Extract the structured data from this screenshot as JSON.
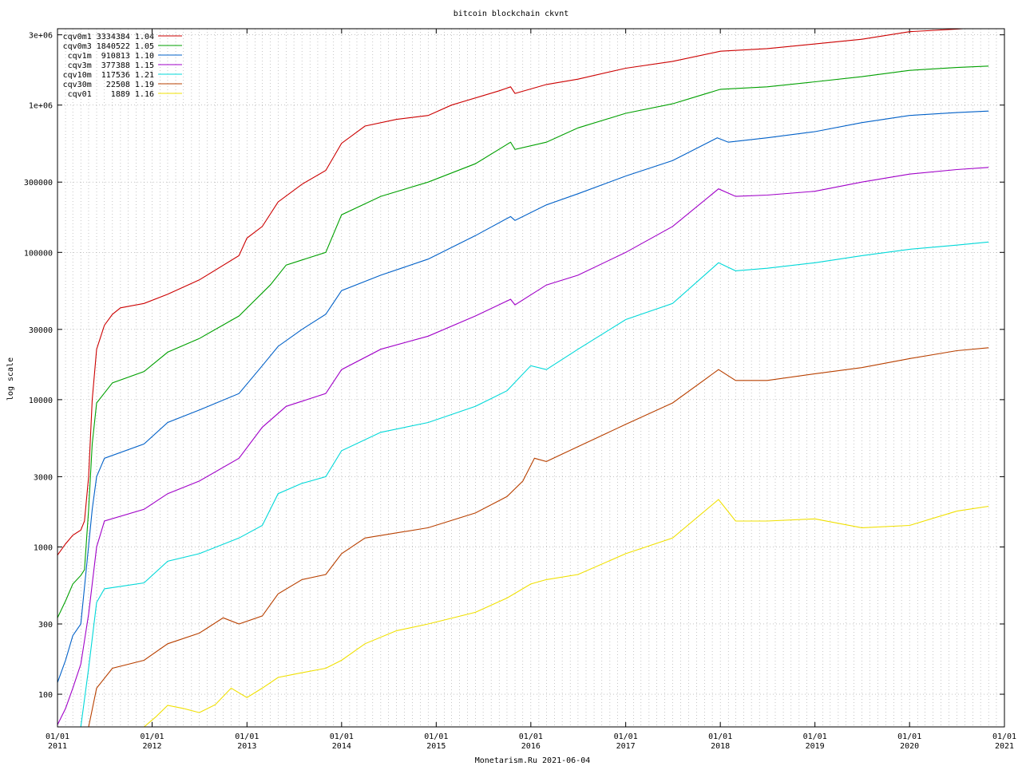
{
  "chart_data": {
    "type": "line",
    "title": "bitcoin blockchain ckvnt",
    "ylabel": "log scale",
    "footer": "Monetarism.Ru 2021-06-04",
    "yscale": "log",
    "ylim": [
      60,
      3300000
    ],
    "xlim": [
      "2011-01-01",
      "2021-01-01"
    ],
    "grid": true,
    "legend_position": "top-left",
    "y_ticks": [
      {
        "value": 3000000,
        "label": "3e+06"
      },
      {
        "value": 1000000,
        "label": "1e+06"
      },
      {
        "value": 300000,
        "label": "300000"
      },
      {
        "value": 100000,
        "label": "100000"
      },
      {
        "value": 30000,
        "label": "30000"
      },
      {
        "value": 10000,
        "label": "10000"
      },
      {
        "value": 3000,
        "label": "3000"
      },
      {
        "value": 1000,
        "label": "1000"
      },
      {
        "value": 300,
        "label": "300"
      },
      {
        "value": 100,
        "label": "100"
      }
    ],
    "x_ticks": [
      {
        "date": "2011-01-01",
        "line1": "01/01",
        "line2": "2011"
      },
      {
        "date": "2012-01-01",
        "line1": "01/01",
        "line2": "2012"
      },
      {
        "date": "2013-01-01",
        "line1": "01/01",
        "line2": "2013"
      },
      {
        "date": "2014-01-01",
        "line1": "01/01",
        "line2": "2014"
      },
      {
        "date": "2015-01-01",
        "line1": "01/01",
        "line2": "2015"
      },
      {
        "date": "2016-01-01",
        "line1": "01/01",
        "line2": "2016"
      },
      {
        "date": "2017-01-01",
        "line1": "01/01",
        "line2": "2017"
      },
      {
        "date": "2018-01-01",
        "line1": "01/01",
        "line2": "2018"
      },
      {
        "date": "2019-01-01",
        "line1": "01/01",
        "line2": "2019"
      },
      {
        "date": "2020-01-01",
        "line1": "01/01",
        "line2": "2020"
      },
      {
        "date": "2021-01-01",
        "line1": "01/01",
        "line2": "2021"
      }
    ],
    "series": [
      {
        "name": "cqv0m1",
        "legend_label": "cqv0m1 3334384 1.04",
        "color": "#cc0000",
        "points": [
          [
            "2011-01-01",
            880
          ],
          [
            "2011-02-01",
            1050
          ],
          [
            "2011-03-01",
            1200
          ],
          [
            "2011-04-01",
            1300
          ],
          [
            "2011-04-15",
            1500
          ],
          [
            "2011-05-01",
            3000
          ],
          [
            "2011-05-15",
            10000
          ],
          [
            "2011-06-01",
            22000
          ],
          [
            "2011-07-01",
            32000
          ],
          [
            "2011-08-01",
            38000
          ],
          [
            "2011-09-01",
            42000
          ],
          [
            "2011-12-01",
            45000
          ],
          [
            "2012-03-01",
            52000
          ],
          [
            "2012-07-01",
            65000
          ],
          [
            "2012-12-01",
            95000
          ],
          [
            "2013-01-01",
            125000
          ],
          [
            "2013-03-01",
            150000
          ],
          [
            "2013-05-01",
            220000
          ],
          [
            "2013-08-01",
            290000
          ],
          [
            "2013-11-01",
            360000
          ],
          [
            "2014-01-01",
            550000
          ],
          [
            "2014-04-01",
            720000
          ],
          [
            "2014-08-01",
            800000
          ],
          [
            "2014-12-01",
            850000
          ],
          [
            "2015-03-01",
            1000000
          ],
          [
            "2015-09-01",
            1250000
          ],
          [
            "2015-10-15",
            1330000
          ],
          [
            "2015-11-01",
            1200000
          ],
          [
            "2016-03-01",
            1380000
          ],
          [
            "2016-07-01",
            1500000
          ],
          [
            "2017-01-01",
            1780000
          ],
          [
            "2017-07-01",
            1980000
          ],
          [
            "2018-01-01",
            2320000
          ],
          [
            "2018-07-01",
            2420000
          ],
          [
            "2019-01-01",
            2600000
          ],
          [
            "2019-07-01",
            2800000
          ],
          [
            "2020-01-01",
            3150000
          ],
          [
            "2020-07-01",
            3280000
          ],
          [
            "2020-09-01",
            3334384
          ]
        ]
      },
      {
        "name": "cqv0m3",
        "legend_label": "cqv0m3 1840522 1.05",
        "color": "#00a000",
        "points": [
          [
            "2011-01-01",
            330
          ],
          [
            "2011-02-01",
            430
          ],
          [
            "2011-03-01",
            560
          ],
          [
            "2011-04-01",
            640
          ],
          [
            "2011-04-15",
            700
          ],
          [
            "2011-05-01",
            1800
          ],
          [
            "2011-05-15",
            5000
          ],
          [
            "2011-06-01",
            9500
          ],
          [
            "2011-08-01",
            13000
          ],
          [
            "2011-12-01",
            15500
          ],
          [
            "2012-03-01",
            21000
          ],
          [
            "2012-07-01",
            26000
          ],
          [
            "2012-12-01",
            37000
          ],
          [
            "2013-04-01",
            60000
          ],
          [
            "2013-06-01",
            82000
          ],
          [
            "2013-11-01",
            100000
          ],
          [
            "2014-01-01",
            180000
          ],
          [
            "2014-06-01",
            240000
          ],
          [
            "2014-12-01",
            300000
          ],
          [
            "2015-06-01",
            400000
          ],
          [
            "2015-10-15",
            560000
          ],
          [
            "2015-11-01",
            500000
          ],
          [
            "2016-03-01",
            560000
          ],
          [
            "2016-07-01",
            700000
          ],
          [
            "2017-01-01",
            880000
          ],
          [
            "2017-07-01",
            1020000
          ],
          [
            "2018-01-01",
            1280000
          ],
          [
            "2018-07-01",
            1330000
          ],
          [
            "2019-01-01",
            1440000
          ],
          [
            "2019-07-01",
            1560000
          ],
          [
            "2020-01-01",
            1720000
          ],
          [
            "2020-07-01",
            1800000
          ],
          [
            "2020-11-01",
            1840522
          ]
        ]
      },
      {
        "name": "cqv1m",
        "legend_label": "cqv1m  910813 1.10",
        "color": "#0060c8",
        "points": [
          [
            "2011-01-01",
            120
          ],
          [
            "2011-02-01",
            170
          ],
          [
            "2011-03-01",
            250
          ],
          [
            "2011-04-01",
            300
          ],
          [
            "2011-04-20",
            650
          ],
          [
            "2011-05-15",
            1800
          ],
          [
            "2011-06-01",
            3000
          ],
          [
            "2011-07-01",
            4000
          ],
          [
            "2011-12-01",
            5000
          ],
          [
            "2012-03-01",
            7000
          ],
          [
            "2012-07-01",
            8500
          ],
          [
            "2012-12-01",
            11000
          ],
          [
            "2013-03-01",
            17000
          ],
          [
            "2013-05-01",
            23000
          ],
          [
            "2013-08-01",
            30000
          ],
          [
            "2013-11-01",
            38000
          ],
          [
            "2014-01-01",
            55000
          ],
          [
            "2014-06-01",
            70000
          ],
          [
            "2014-12-01",
            90000
          ],
          [
            "2015-06-01",
            130000
          ],
          [
            "2015-10-15",
            175000
          ],
          [
            "2015-11-01",
            165000
          ],
          [
            "2016-03-01",
            210000
          ],
          [
            "2016-07-01",
            250000
          ],
          [
            "2017-01-01",
            330000
          ],
          [
            "2017-07-01",
            420000
          ],
          [
            "2017-12-20",
            600000
          ],
          [
            "2018-02-01",
            560000
          ],
          [
            "2018-07-01",
            600000
          ],
          [
            "2019-01-01",
            660000
          ],
          [
            "2019-07-01",
            760000
          ],
          [
            "2020-01-01",
            850000
          ],
          [
            "2020-07-01",
            890000
          ],
          [
            "2020-11-01",
            910813
          ]
        ]
      },
      {
        "name": "cqv3m",
        "legend_label": "cqv3m  377388 1.15",
        "color": "#a000c8",
        "points": [
          [
            "2011-01-01",
            62
          ],
          [
            "2011-02-01",
            80
          ],
          [
            "2011-03-01",
            110
          ],
          [
            "2011-04-01",
            160
          ],
          [
            "2011-05-01",
            350
          ],
          [
            "2011-06-01",
            1000
          ],
          [
            "2011-07-01",
            1500
          ],
          [
            "2011-12-01",
            1800
          ],
          [
            "2012-03-01",
            2300
          ],
          [
            "2012-07-01",
            2800
          ],
          [
            "2012-12-01",
            4000
          ],
          [
            "2013-03-01",
            6500
          ],
          [
            "2013-06-01",
            9000
          ],
          [
            "2013-11-01",
            11000
          ],
          [
            "2014-01-01",
            16000
          ],
          [
            "2014-06-01",
            22000
          ],
          [
            "2014-12-01",
            27000
          ],
          [
            "2015-06-01",
            37000
          ],
          [
            "2015-10-15",
            48000
          ],
          [
            "2015-11-01",
            44000
          ],
          [
            "2016-03-01",
            60000
          ],
          [
            "2016-07-01",
            70000
          ],
          [
            "2017-01-01",
            100000
          ],
          [
            "2017-07-01",
            150000
          ],
          [
            "2017-12-25",
            270000
          ],
          [
            "2018-03-01",
            240000
          ],
          [
            "2018-07-01",
            245000
          ],
          [
            "2019-01-01",
            260000
          ],
          [
            "2019-07-01",
            300000
          ],
          [
            "2020-01-01",
            340000
          ],
          [
            "2020-07-01",
            365000
          ],
          [
            "2020-11-01",
            377388
          ]
        ]
      },
      {
        "name": "cqv10m",
        "legend_label": "cqv10m  117536 1.21",
        "color": "#00d8d8",
        "points": [
          [
            "2011-04-01",
            60
          ],
          [
            "2011-05-01",
            150
          ],
          [
            "2011-06-01",
            420
          ],
          [
            "2011-07-01",
            520
          ],
          [
            "2011-12-01",
            570
          ],
          [
            "2012-03-01",
            800
          ],
          [
            "2012-07-01",
            900
          ],
          [
            "2012-12-01",
            1150
          ],
          [
            "2013-03-01",
            1400
          ],
          [
            "2013-05-01",
            2300
          ],
          [
            "2013-08-01",
            2700
          ],
          [
            "2013-11-01",
            3000
          ],
          [
            "2014-01-01",
            4500
          ],
          [
            "2014-06-01",
            6000
          ],
          [
            "2014-12-01",
            7000
          ],
          [
            "2015-06-01",
            9000
          ],
          [
            "2015-10-01",
            11500
          ],
          [
            "2016-01-01",
            17000
          ],
          [
            "2016-03-01",
            16000
          ],
          [
            "2016-07-01",
            22000
          ],
          [
            "2017-01-01",
            35000
          ],
          [
            "2017-07-01",
            45000
          ],
          [
            "2017-12-25",
            85000
          ],
          [
            "2018-03-01",
            75000
          ],
          [
            "2018-07-01",
            78000
          ],
          [
            "2019-01-01",
            85000
          ],
          [
            "2019-07-01",
            95000
          ],
          [
            "2020-01-01",
            105000
          ],
          [
            "2020-07-01",
            112000
          ],
          [
            "2020-11-01",
            117536
          ]
        ]
      },
      {
        "name": "cqv30m",
        "legend_label": "cqv30m   22508 1.19",
        "color": "#b84000",
        "points": [
          [
            "2011-05-01",
            60
          ],
          [
            "2011-06-01",
            110
          ],
          [
            "2011-08-01",
            150
          ],
          [
            "2011-12-01",
            170
          ],
          [
            "2012-03-01",
            220
          ],
          [
            "2012-07-01",
            260
          ],
          [
            "2012-10-01",
            330
          ],
          [
            "2012-12-01",
            300
          ],
          [
            "2013-03-01",
            340
          ],
          [
            "2013-05-01",
            480
          ],
          [
            "2013-08-01",
            600
          ],
          [
            "2013-11-01",
            650
          ],
          [
            "2014-01-01",
            900
          ],
          [
            "2014-04-01",
            1150
          ],
          [
            "2014-12-01",
            1350
          ],
          [
            "2015-06-01",
            1700
          ],
          [
            "2015-10-01",
            2200
          ],
          [
            "2015-12-01",
            2800
          ],
          [
            "2016-01-15",
            4000
          ],
          [
            "2016-03-01",
            3800
          ],
          [
            "2016-07-01",
            4800
          ],
          [
            "2017-01-01",
            6800
          ],
          [
            "2017-07-01",
            9500
          ],
          [
            "2017-12-25",
            16000
          ],
          [
            "2018-03-01",
            13500
          ],
          [
            "2018-07-01",
            13500
          ],
          [
            "2019-01-01",
            15000
          ],
          [
            "2019-07-01",
            16500
          ],
          [
            "2020-01-01",
            19000
          ],
          [
            "2020-07-01",
            21500
          ],
          [
            "2020-11-01",
            22508
          ]
        ]
      },
      {
        "name": "cqv01",
        "legend_label": "cqv01    1889 1.16",
        "color": "#f0e000",
        "points": [
          [
            "2011-12-01",
            60
          ],
          [
            "2012-01-15",
            70
          ],
          [
            "2012-03-01",
            84
          ],
          [
            "2012-05-01",
            80
          ],
          [
            "2012-07-01",
            75
          ],
          [
            "2012-09-01",
            85
          ],
          [
            "2012-11-01",
            110
          ],
          [
            "2013-01-01",
            95
          ],
          [
            "2013-03-01",
            110
          ],
          [
            "2013-05-01",
            130
          ],
          [
            "2013-08-01",
            140
          ],
          [
            "2013-11-01",
            150
          ],
          [
            "2014-01-01",
            170
          ],
          [
            "2014-04-01",
            220
          ],
          [
            "2014-08-01",
            270
          ],
          [
            "2014-12-01",
            300
          ],
          [
            "2015-06-01",
            360
          ],
          [
            "2015-10-01",
            450
          ],
          [
            "2016-01-01",
            560
          ],
          [
            "2016-03-01",
            600
          ],
          [
            "2016-07-01",
            650
          ],
          [
            "2017-01-01",
            900
          ],
          [
            "2017-07-01",
            1150
          ],
          [
            "2017-12-25",
            2100
          ],
          [
            "2018-03-01",
            1500
          ],
          [
            "2018-07-01",
            1500
          ],
          [
            "2019-01-01",
            1550
          ],
          [
            "2019-07-01",
            1350
          ],
          [
            "2020-01-01",
            1400
          ],
          [
            "2020-07-01",
            1750
          ],
          [
            "2020-11-01",
            1889
          ]
        ]
      }
    ]
  }
}
